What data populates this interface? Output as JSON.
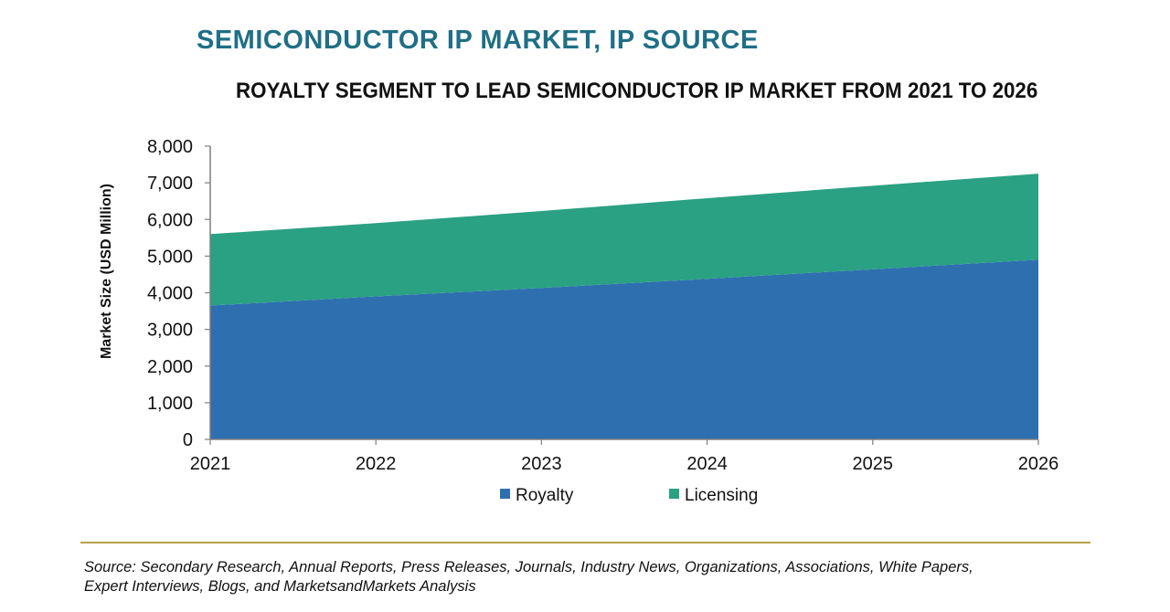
{
  "header": {
    "title": "SEMICONDUCTOR IP MARKET, IP SOURCE",
    "subtitle": "ROYALTY SEGMENT TO LEAD SEMICONDUCTOR IP MARKET FROM 2021 TO 2026"
  },
  "chart_data": {
    "type": "area",
    "stacked": true,
    "title": "ROYALTY SEGMENT TO LEAD SEMICONDUCTOR IP MARKET FROM 2021 TO 2026",
    "xlabel": "",
    "ylabel": "Market Size (USD Million)",
    "x": [
      "2021",
      "2022",
      "2023",
      "2024",
      "2025",
      "2026"
    ],
    "ylim": [
      0,
      8000
    ],
    "yticks": [
      0,
      1000,
      2000,
      3000,
      4000,
      5000,
      6000,
      7000,
      8000
    ],
    "ytick_labels": [
      "0",
      "1,000",
      "2,000",
      "3,000",
      "4,000",
      "5,000",
      "6,000",
      "7,000",
      "8,000"
    ],
    "grid": false,
    "legend_position": "bottom",
    "series": [
      {
        "name": "Royalty",
        "color": "#2e6fb0",
        "values": [
          3650,
          3900,
          4130,
          4380,
          4640,
          4900
        ]
      },
      {
        "name": "Licensing",
        "color": "#2aa183",
        "values": [
          1950,
          2000,
          2100,
          2200,
          2280,
          2350
        ]
      }
    ]
  },
  "footer": {
    "source_line1": "Source: Secondary Research, Annual Reports, Press Releases, Journals, Industry News, Organizations, Associations, White Papers,",
    "source_line2": "Expert Interviews, Blogs, and MarketsandMarkets Analysis"
  }
}
